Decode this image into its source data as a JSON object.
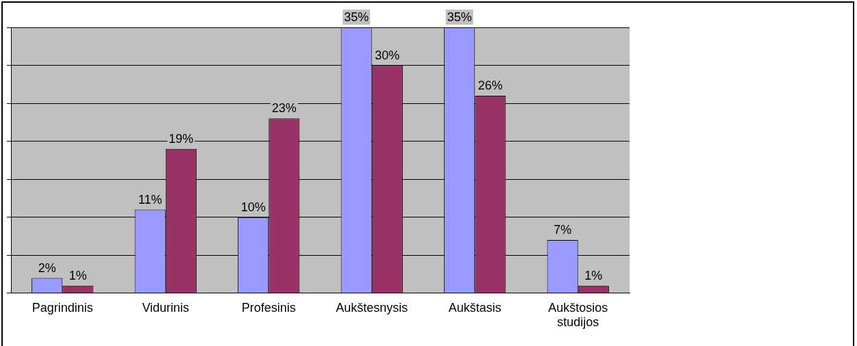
{
  "chart_data": {
    "type": "bar",
    "categories": [
      "Pagrindinis",
      "Vidurinis",
      "Profesinis",
      "Aukštesnysis",
      "Aukštasis",
      "Aukštosios studijos"
    ],
    "series": [
      {
        "color": "#9999ff",
        "values": [
          2,
          11,
          10,
          35,
          35,
          7
        ],
        "value_labels": [
          "2%",
          "11%",
          "10%",
          "35%",
          "35%",
          "7%"
        ]
      },
      {
        "color": "#993366",
        "values": [
          1,
          19,
          23,
          30,
          26,
          1
        ],
        "value_labels": [
          "1%",
          "19%",
          "23%",
          "30%",
          "26%",
          "1%"
        ]
      }
    ],
    "grid": "y",
    "tick_labels": "x",
    "legend": false
  }
}
